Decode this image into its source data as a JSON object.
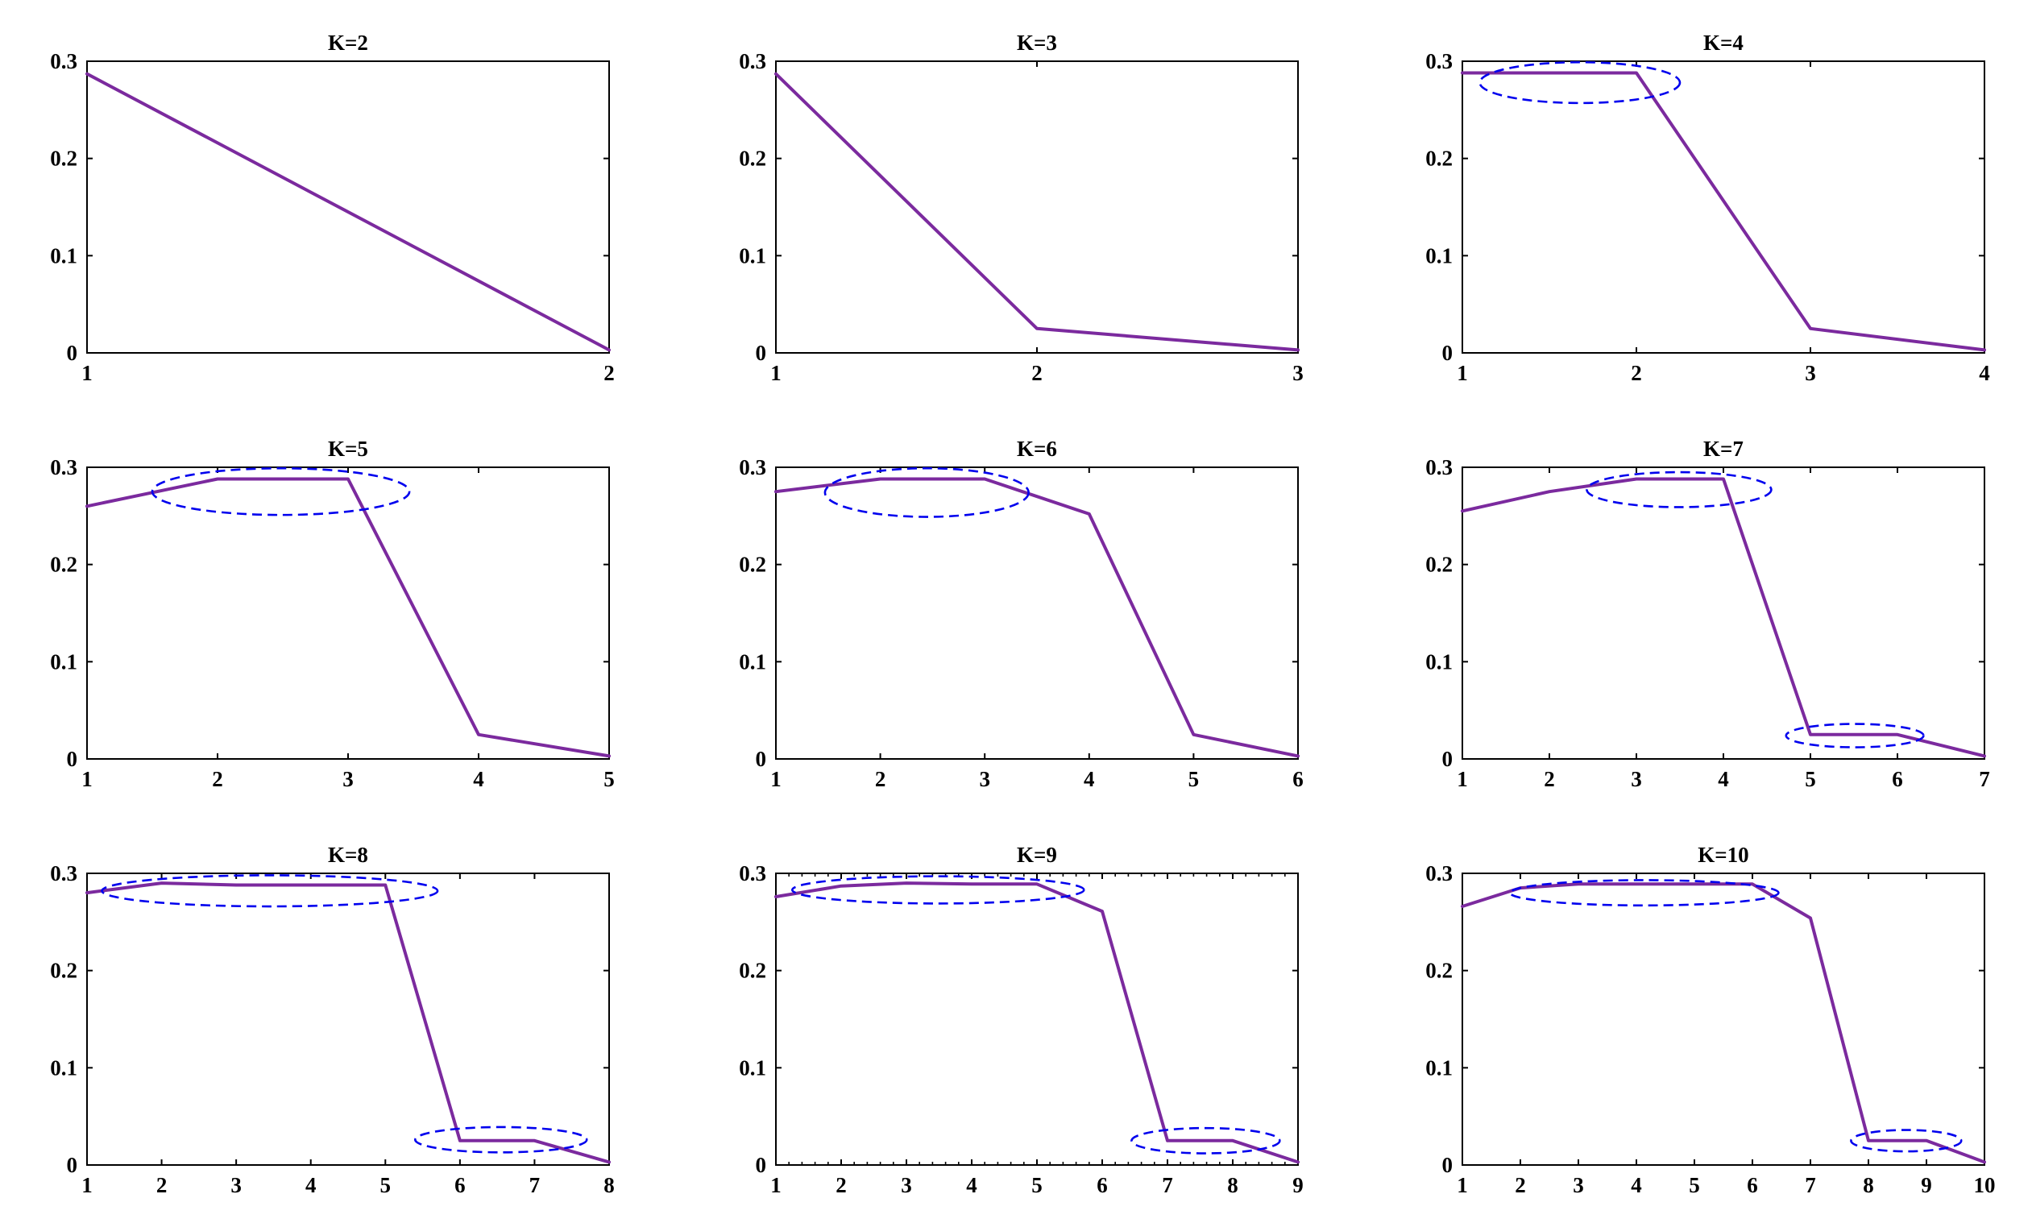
{
  "colors": {
    "line": "#7b2a9e",
    "ellipse": "#0000ee",
    "axes": "#000000"
  },
  "chart_data": [
    {
      "type": "line",
      "title": "K=2",
      "x": [
        1,
        2
      ],
      "values": [
        0.287,
        0.003
      ],
      "xlim": [
        1,
        2
      ],
      "ylim": [
        0,
        0.3
      ],
      "xticks": [
        1,
        2
      ],
      "xtick_labels": [
        "1",
        "2"
      ],
      "yticks": [
        0,
        0.1,
        0.2,
        0.3
      ],
      "ytick_labels": [
        "0",
        "0.1",
        "0.2",
        "0.3"
      ],
      "highlights": []
    },
    {
      "type": "line",
      "title": "K=3",
      "x": [
        1,
        2,
        3
      ],
      "values": [
        0.287,
        0.025,
        0.003
      ],
      "xlim": [
        1,
        3
      ],
      "ylim": [
        0,
        0.3
      ],
      "xticks": [
        1,
        2,
        3
      ],
      "xtick_labels": [
        "1",
        "2",
        "3"
      ],
      "yticks": [
        0,
        0.1,
        0.2,
        0.3
      ],
      "ytick_labels": [
        "0",
        "0.1",
        "0.2",
        "0.3"
      ],
      "highlights": []
    },
    {
      "type": "line",
      "title": "K=4",
      "x": [
        1,
        2,
        3,
        4
      ],
      "values": [
        0.288,
        0.288,
        0.025,
        0.003
      ],
      "xlim": [
        1,
        4
      ],
      "ylim": [
        0,
        0.3
      ],
      "xticks": [
        1,
        2,
        3,
        4
      ],
      "xtick_labels": [
        "1",
        "2",
        "3",
        "4"
      ],
      "yticks": [
        0,
        0.1,
        0.2,
        0.3
      ],
      "ytick_labels": [
        "0",
        "0.1",
        "0.2",
        "0.3"
      ],
      "highlights": [
        {
          "x_from": 1.1,
          "x_to": 2.25,
          "y_center": 0.278,
          "y_half": 0.021
        }
      ]
    },
    {
      "type": "line",
      "title": "K=5",
      "x": [
        1,
        2,
        3,
        4,
        5
      ],
      "values": [
        0.26,
        0.288,
        0.288,
        0.025,
        0.003
      ],
      "xlim": [
        1,
        5
      ],
      "ylim": [
        0,
        0.3
      ],
      "xticks": [
        1,
        2,
        3,
        4,
        5
      ],
      "xtick_labels": [
        "1",
        "2",
        "3",
        "4",
        "5"
      ],
      "yticks": [
        0,
        0.1,
        0.2,
        0.3
      ],
      "ytick_labels": [
        "0",
        "0.1",
        "0.2",
        "0.3"
      ],
      "highlights": [
        {
          "x_from": 1.5,
          "x_to": 3.47,
          "y_center": 0.275,
          "y_half": 0.024
        }
      ]
    },
    {
      "type": "line",
      "title": "K=6",
      "x": [
        1,
        2,
        3,
        4,
        5,
        6
      ],
      "values": [
        0.275,
        0.288,
        0.288,
        0.252,
        0.025,
        0.003
      ],
      "xlim": [
        1,
        6
      ],
      "ylim": [
        0,
        0.3
      ],
      "xticks": [
        1,
        2,
        3,
        4,
        5,
        6
      ],
      "xtick_labels": [
        "1",
        "2",
        "3",
        "4",
        "5",
        "6"
      ],
      "yticks": [
        0,
        0.1,
        0.2,
        0.3
      ],
      "ytick_labels": [
        "0",
        "0.1",
        "0.2",
        "0.3"
      ],
      "highlights": [
        {
          "x_from": 1.47,
          "x_to": 3.42,
          "y_center": 0.274,
          "y_half": 0.025
        }
      ]
    },
    {
      "type": "line",
      "title": "K=7",
      "x": [
        1,
        2,
        3,
        4,
        5,
        6,
        7
      ],
      "values": [
        0.255,
        0.275,
        0.288,
        0.288,
        0.025,
        0.025,
        0.003
      ],
      "xlim": [
        1,
        7
      ],
      "ylim": [
        0,
        0.3
      ],
      "xticks": [
        1,
        2,
        3,
        4,
        5,
        6,
        7
      ],
      "xtick_labels": [
        "1",
        "2",
        "3",
        "4",
        "5",
        "6",
        "7"
      ],
      "yticks": [
        0,
        0.1,
        0.2,
        0.3
      ],
      "ytick_labels": [
        "0",
        "0.1",
        "0.2",
        "0.3"
      ],
      "highlights": [
        {
          "x_from": 2.43,
          "x_to": 4.55,
          "y_center": 0.277,
          "y_half": 0.018
        },
        {
          "x_from": 4.72,
          "x_to": 6.3,
          "y_center": 0.024,
          "y_half": 0.012
        }
      ]
    },
    {
      "type": "line",
      "title": "K=8",
      "x": [
        1,
        2,
        3,
        4,
        5,
        6,
        7,
        8
      ],
      "values": [
        0.28,
        0.29,
        0.288,
        0.288,
        0.288,
        0.025,
        0.025,
        0.003
      ],
      "xlim": [
        1,
        8
      ],
      "ylim": [
        0,
        0.3
      ],
      "xticks": [
        1,
        2,
        3,
        4,
        5,
        6,
        7,
        8
      ],
      "xtick_labels": [
        "1",
        "2",
        "3",
        "4",
        "5",
        "6",
        "7",
        "8"
      ],
      "yticks": [
        0,
        0.1,
        0.2,
        0.3
      ],
      "ytick_labels": [
        "0",
        "0.1",
        "0.2",
        "0.3"
      ],
      "highlights": [
        {
          "x_from": 1.2,
          "x_to": 5.7,
          "y_center": 0.282,
          "y_half": 0.016
        },
        {
          "x_from": 5.4,
          "x_to": 7.7,
          "y_center": 0.026,
          "y_half": 0.013
        }
      ]
    },
    {
      "type": "line",
      "title": "K=9",
      "x": [
        1,
        2,
        3,
        4,
        5,
        6,
        7,
        8,
        9
      ],
      "values": [
        0.276,
        0.287,
        0.29,
        0.289,
        0.289,
        0.261,
        0.025,
        0.025,
        0.003
      ],
      "xlim": [
        1,
        9
      ],
      "ylim": [
        0,
        0.3
      ],
      "xticks": [
        1,
        2,
        3,
        4,
        5,
        6,
        7,
        8,
        9
      ],
      "xtick_labels": [
        "1",
        "2",
        "3",
        "4",
        "5",
        "6",
        "7",
        "8",
        "9"
      ],
      "yticks": [
        0,
        0.1,
        0.2,
        0.3
      ],
      "ytick_labels": [
        "0",
        "0.1",
        "0.2",
        "0.3"
      ],
      "minor_ticks": true,
      "highlights": [
        {
          "x_from": 1.25,
          "x_to": 5.72,
          "y_center": 0.283,
          "y_half": 0.014
        },
        {
          "x_from": 6.45,
          "x_to": 8.72,
          "y_center": 0.025,
          "y_half": 0.013
        }
      ]
    },
    {
      "type": "line",
      "title": "K=10",
      "x": [
        1,
        2,
        3,
        4,
        5,
        6,
        7,
        8,
        9,
        10
      ],
      "values": [
        0.266,
        0.285,
        0.289,
        0.289,
        0.289,
        0.289,
        0.254,
        0.025,
        0.025,
        0.003
      ],
      "xlim": [
        1,
        10
      ],
      "ylim": [
        0,
        0.3
      ],
      "xticks": [
        1,
        2,
        3,
        4,
        5,
        6,
        7,
        8,
        9,
        10
      ],
      "xtick_labels": [
        "1",
        "2",
        "3",
        "4",
        "5",
        "6",
        "7",
        "8",
        "9",
        "10"
      ],
      "yticks": [
        0,
        0.1,
        0.2,
        0.3
      ],
      "ytick_labels": [
        "0",
        "0.1",
        "0.2",
        "0.3"
      ],
      "highlights": [
        {
          "x_from": 1.82,
          "x_to": 6.45,
          "y_center": 0.28,
          "y_half": 0.013
        },
        {
          "x_from": 7.7,
          "x_to": 9.6,
          "y_center": 0.025,
          "y_half": 0.011
        }
      ]
    }
  ]
}
